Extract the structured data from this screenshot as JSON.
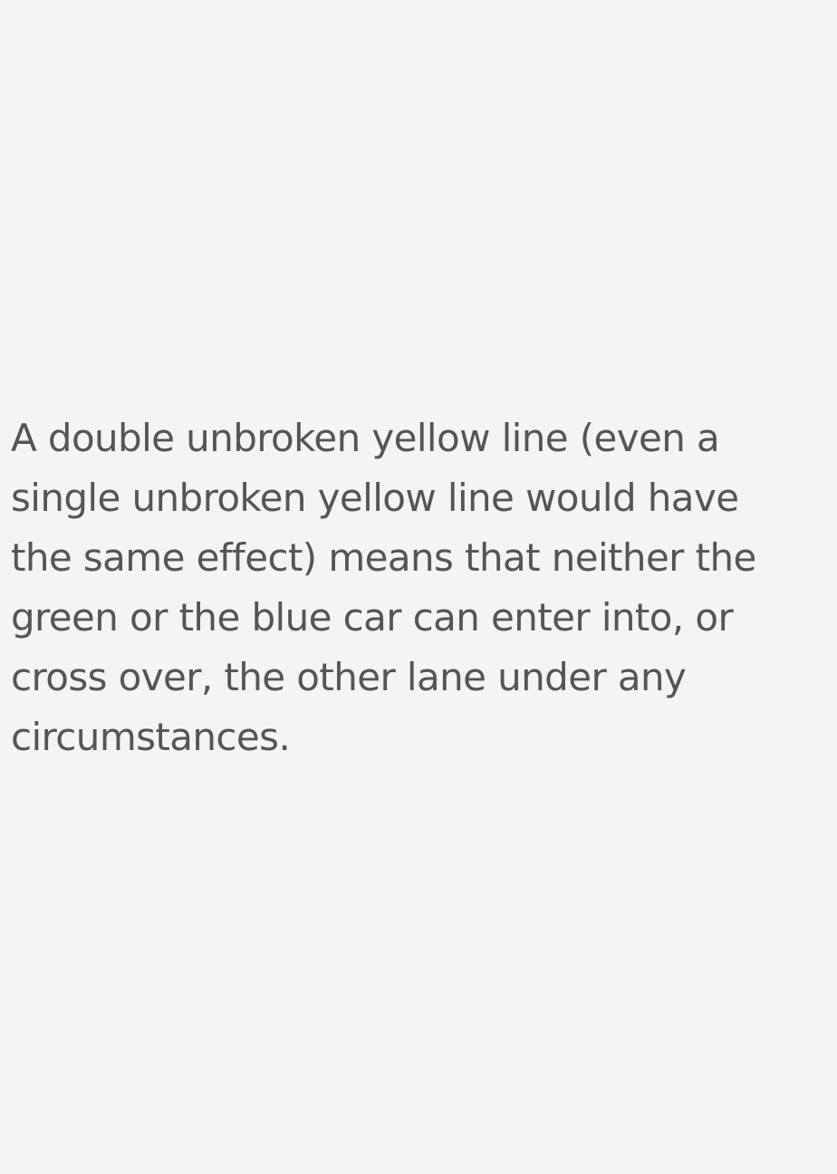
{
  "content": {
    "explanation_text": "A double unbroken yellow line (even a single unbroken yellow line would have the same effect) means that neither the green or the blue car can enter into, or cross over, the other lane under any circumstances."
  },
  "colors": {
    "background": "#f4f4f4",
    "text": "#555555"
  }
}
